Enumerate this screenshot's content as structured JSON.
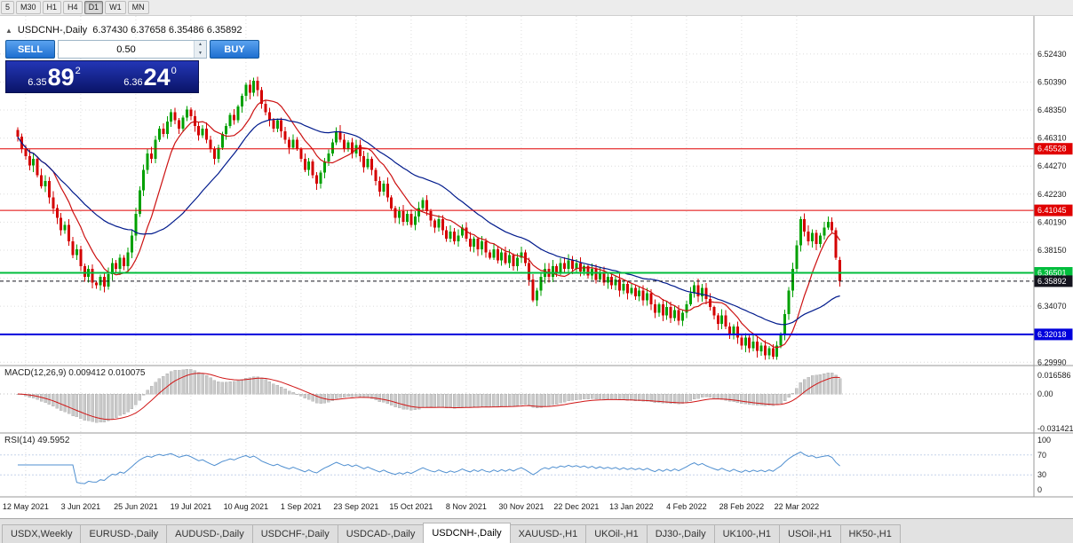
{
  "toolbar": {
    "timeframes": [
      "5",
      "M30",
      "H1",
      "H4",
      "D1",
      "W1",
      "MN"
    ],
    "active": "D1"
  },
  "chart_header": {
    "collapse_glyph": "▲",
    "text": "USDCNH-,Daily  6.37430 6.37658 6.35486 6.35892"
  },
  "trade_panel": {
    "sell_label": "SELL",
    "buy_label": "BUY",
    "volume": "0.50",
    "spin_up_glyph": "▲",
    "spin_down_glyph": "▼",
    "sell_price": {
      "small": "6.35",
      "big": "89",
      "sup": "2"
    },
    "buy_price": {
      "small": "6.36",
      "big": "24",
      "sup": "0"
    }
  },
  "chart_data": {
    "type": "candlestick",
    "symbol": "USDCNH-",
    "timeframe": "Daily",
    "ohlc_readout": {
      "open": "6.37430",
      "high": "6.37658",
      "low": "6.35486",
      "close": "6.35892"
    },
    "price_domain": [
      6.2975,
      6.552
    ],
    "price_ticks": [
      "6.52430",
      "6.50390",
      "6.48350",
      "6.46310",
      "6.44270",
      "6.42230",
      "6.40190",
      "6.38150",
      "6.36110",
      "6.34070",
      "6.32030",
      "6.29990"
    ],
    "levels": [
      {
        "label": "6.45528",
        "value": 6.45528,
        "color": "#e00000",
        "width": 1,
        "style": "solid"
      },
      {
        "label": "6.41045",
        "value": 6.41045,
        "color": "#e00000",
        "width": 1,
        "style": "solid"
      },
      {
        "label": "6.32018",
        "value": 6.32018,
        "color": "#0000dc",
        "width": 2,
        "style": "solid"
      },
      {
        "label": "6.36501",
        "value": 6.36501,
        "color": "#00bd3c",
        "width": 2,
        "style": "solid"
      },
      {
        "label": "6.35892",
        "value": 6.35892,
        "color": "#14141e",
        "width": 1,
        "style": "dashed"
      }
    ],
    "date_ticks": [
      "12 May 2021",
      "3 Jun 2021",
      "25 Jun 2021",
      "19 Jul 2021",
      "10 Aug 2021",
      "1 Sep 2021",
      "23 Sep 2021",
      "15 Oct 2021",
      "8 Nov 2021",
      "30 Nov 2021",
      "22 Dec 2021",
      "13 Jan 2022",
      "4 Feb 2022",
      "28 Feb 2022",
      "22 Mar 2022"
    ],
    "date_tick_indices": [
      2,
      16,
      30,
      44,
      58,
      72,
      86,
      100,
      114,
      128,
      142,
      156,
      170,
      184,
      198
    ],
    "up_color": "#00a000",
    "down_color": "#d40000",
    "moving_averages": [
      {
        "name": "fast",
        "period": 10,
        "color": "#cc1111"
      },
      {
        "name": "slow",
        "period": 30,
        "color": "#001a8c"
      }
    ],
    "closes": [
      6.464,
      6.455,
      6.45,
      6.443,
      6.448,
      6.436,
      6.428,
      6.432,
      6.42,
      6.412,
      6.405,
      6.396,
      6.4,
      6.388,
      6.378,
      6.382,
      6.37,
      6.362,
      6.368,
      6.358,
      6.356,
      6.362,
      6.355,
      6.364,
      6.372,
      6.368,
      6.376,
      6.37,
      6.38,
      6.392,
      6.408,
      6.425,
      6.44,
      6.452,
      6.448,
      6.462,
      6.47,
      6.466,
      6.475,
      6.482,
      6.476,
      6.47,
      6.478,
      6.484,
      6.479,
      6.472,
      6.465,
      6.47,
      6.462,
      6.455,
      6.448,
      6.456,
      6.466,
      6.472,
      6.48,
      6.476,
      6.486,
      6.494,
      6.502,
      6.496,
      6.505,
      6.498,
      6.488,
      6.482,
      6.476,
      6.47,
      6.476,
      6.468,
      6.462,
      6.456,
      6.462,
      6.455,
      6.448,
      6.44,
      6.446,
      6.436,
      6.43,
      6.438,
      6.446,
      6.452,
      6.46,
      6.468,
      6.462,
      6.455,
      6.46,
      6.452,
      6.458,
      6.45,
      6.442,
      6.448,
      6.44,
      6.432,
      6.424,
      6.43,
      6.42,
      6.412,
      6.405,
      6.41,
      6.402,
      6.408,
      6.4,
      6.406,
      6.412,
      6.418,
      6.41,
      6.403,
      6.398,
      6.404,
      6.396,
      6.39,
      6.395,
      6.388,
      6.392,
      6.398,
      6.39,
      6.384,
      6.39,
      6.382,
      6.388,
      6.38,
      6.376,
      6.382,
      6.374,
      6.38,
      6.372,
      6.378,
      6.37,
      6.376,
      6.38,
      6.372,
      6.36,
      6.345,
      6.352,
      6.362,
      6.368,
      6.362,
      6.37,
      6.365,
      6.372,
      6.368,
      6.374,
      6.368,
      6.372,
      6.366,
      6.37,
      6.363,
      6.368,
      6.36,
      6.365,
      6.358,
      6.362,
      6.356,
      6.36,
      6.352,
      6.357,
      6.35,
      6.354,
      6.348,
      6.352,
      6.345,
      6.35,
      6.342,
      6.336,
      6.342,
      6.334,
      6.34,
      6.332,
      6.338,
      6.33,
      6.336,
      6.342,
      6.35,
      6.356,
      6.348,
      6.354,
      6.346,
      6.34,
      6.334,
      6.328,
      6.334,
      6.326,
      6.32,
      6.326,
      6.318,
      6.312,
      6.318,
      6.31,
      6.315,
      6.308,
      6.312,
      6.305,
      6.31,
      6.304,
      6.312,
      6.32,
      6.335,
      6.352,
      6.368,
      6.385,
      6.404,
      6.395,
      6.388,
      6.394,
      6.386,
      6.392,
      6.398,
      6.402,
      6.396,
      6.376,
      6.359
    ],
    "macd": {
      "label_text": "MACD(12,26,9) 0.009412 0.010075",
      "params": [
        12,
        26,
        9
      ],
      "main_value": "0.009412",
      "signal_value": "0.010075",
      "domain": [
        -0.0345,
        0.0251
      ],
      "axis_ticks": [
        {
          "label": "0.016586",
          "value": 0.016586
        },
        {
          "label": "0.00",
          "value": 0
        },
        {
          "label": "-0.031421",
          "value": -0.031421
        }
      ],
      "bar_color": "#c9c9c9",
      "signal_color": "#d01616"
    },
    "rsi": {
      "label_text": "RSI(14) 49.5952",
      "period": 14,
      "value": "49.5952",
      "domain": [
        0,
        100
      ],
      "axis_ticks": [
        {
          "label": "100",
          "value": 100
        },
        {
          "label": "70",
          "value": 70
        },
        {
          "label": "30",
          "value": 30
        },
        {
          "label": "0",
          "value": 0
        }
      ],
      "levels": [
        70,
        30
      ],
      "line_color": "#4f8fd0"
    }
  },
  "tabs": {
    "items": [
      "USDX,Weekly",
      "EURUSD-,Daily",
      "AUDUSD-,Daily",
      "USDCHF-,Daily",
      "USDCAD-,Daily",
      "USDCNH-,Daily",
      "XAUUSD-,H1",
      "UKOil-,H1",
      "DJ30-,Daily",
      "UK100-,H1",
      "USOil-,H1",
      "HK50-,H1"
    ],
    "active_index": 5
  }
}
